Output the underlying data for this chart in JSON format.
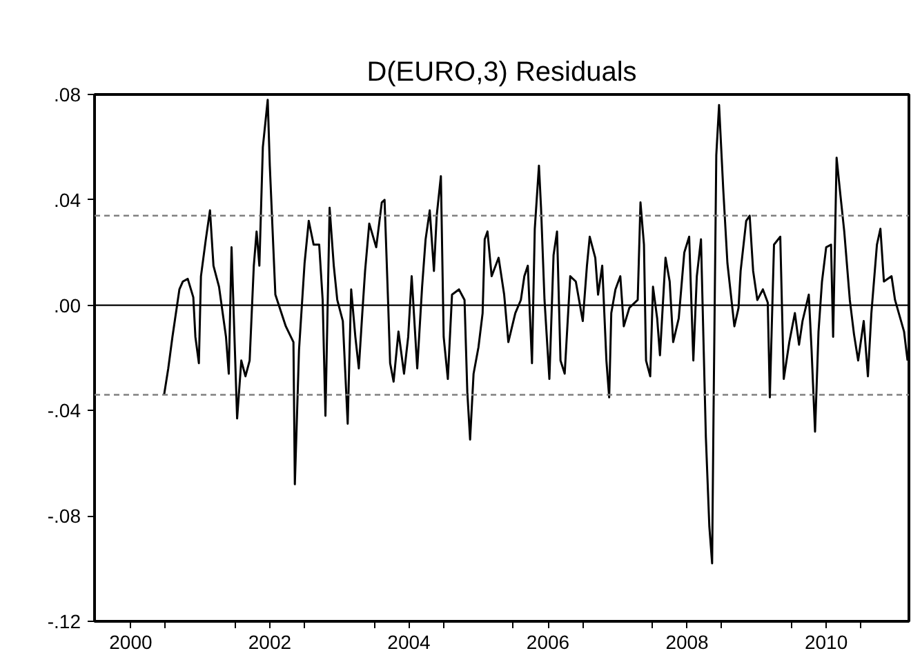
{
  "chart_data": {
    "type": "line",
    "title": "D(EURO,3) Residuals",
    "x": [
      2000.98,
      2001.04,
      2001.1,
      2001.2,
      2001.25,
      2001.32,
      2001.4,
      2001.43,
      2001.48,
      2001.51,
      2001.58,
      2001.64,
      2001.69,
      2001.77,
      2001.87,
      2001.91,
      2001.95,
      2002.03,
      2002.09,
      2002.15,
      2002.21,
      2002.27,
      2002.31,
      2002.35,
      2002.4,
      2002.47,
      2002.5,
      2002.58,
      2002.73,
      2002.84,
      2002.86,
      2002.92,
      2003.0,
      2003.06,
      2003.13,
      2003.21,
      2003.26,
      2003.3,
      2003.36,
      2003.42,
      2003.47,
      2003.55,
      2003.62,
      2003.67,
      2003.73,
      2003.78,
      2003.83,
      2003.87,
      2003.93,
      2004.03,
      2004.11,
      2004.15,
      2004.2,
      2004.23,
      2004.28,
      2004.35,
      2004.43,
      2004.49,
      2004.54,
      2004.62,
      2004.69,
      2004.74,
      2004.8,
      2004.86,
      2004.9,
      2004.96,
      2005.0,
      2005.06,
      2005.12,
      2005.22,
      2005.3,
      2005.34,
      2005.38,
      2005.43,
      2005.5,
      2005.56,
      2005.59,
      2005.63,
      2005.69,
      2005.79,
      2005.87,
      2005.93,
      2006.03,
      2006.11,
      2006.16,
      2006.21,
      2006.27,
      2006.31,
      2006.37,
      2006.4,
      2006.45,
      2006.52,
      2006.58,
      2006.63,
      2006.68,
      2006.74,
      2006.82,
      2006.9,
      2007.0,
      2007.06,
      2007.1,
      2007.18,
      2007.22,
      2007.28,
      2007.34,
      2007.38,
      2007.41,
      2007.47,
      2007.54,
      2007.59,
      2007.67,
      2007.79,
      2007.83,
      2007.88,
      2007.91,
      2007.97,
      2008.01,
      2008.07,
      2008.11,
      2008.19,
      2008.25,
      2008.3,
      2008.38,
      2008.46,
      2008.53,
      2008.59,
      2008.64,
      2008.7,
      2008.77,
      2008.82,
      2008.86,
      2008.88,
      2008.92,
      2008.96,
      2009.02,
      2009.08,
      2009.18,
      2009.24,
      2009.27,
      2009.35,
      2009.4,
      2009.45,
      2009.51,
      2009.59,
      2009.66,
      2009.69,
      2009.75,
      2009.84,
      2009.89,
      2009.97,
      2010.05,
      2010.11,
      2010.16,
      2010.25,
      2010.29,
      2010.34,
      2010.39,
      2010.44,
      2010.5,
      2010.57,
      2010.6,
      2010.65,
      2010.7,
      2010.76,
      2010.84,
      2010.9,
      2010.96,
      2011.04,
      2011.1,
      2011.15,
      2011.23,
      2011.28,
      2011.33,
      2011.44,
      2011.49,
      2011.62,
      2011.67
    ],
    "series": [
      {
        "color": "#000000",
        "values": [
          -0.034,
          -0.024,
          -0.012,
          0.006,
          0.009,
          0.01,
          0.003,
          -0.012,
          -0.022,
          0.011,
          0.025,
          0.036,
          0.015,
          0.007,
          -0.012,
          -0.026,
          0.022,
          -0.043,
          -0.021,
          -0.027,
          -0.021,
          0.015,
          0.028,
          0.015,
          0.06,
          0.078,
          0.053,
          0.004,
          -0.008,
          -0.014,
          -0.068,
          -0.017,
          0.016,
          0.032,
          0.023,
          0.023,
          0.002,
          -0.042,
          0.037,
          0.015,
          0.002,
          -0.006,
          -0.045,
          0.006,
          -0.012,
          -0.024,
          -0.003,
          0.013,
          0.031,
          0.022,
          0.039,
          0.04,
          0.002,
          -0.022,
          -0.029,
          -0.01,
          -0.026,
          -0.012,
          0.011,
          -0.024,
          0.007,
          0.025,
          0.036,
          0.013,
          0.034,
          0.049,
          -0.012,
          -0.028,
          0.004,
          0.006,
          0.002,
          -0.033,
          -0.051,
          -0.026,
          -0.016,
          -0.003,
          0.025,
          0.028,
          0.011,
          0.018,
          0.004,
          -0.014,
          -0.003,
          0.002,
          0.011,
          0.015,
          -0.022,
          0.029,
          0.053,
          0.037,
          0.002,
          -0.028,
          0.019,
          0.028,
          -0.021,
          -0.026,
          0.011,
          0.009,
          -0.006,
          0.015,
          0.026,
          0.018,
          0.004,
          0.015,
          -0.021,
          -0.035,
          -0.003,
          0.006,
          0.011,
          -0.008,
          -0.001,
          0.002,
          0.039,
          0.023,
          -0.021,
          -0.027,
          0.007,
          -0.005,
          -0.019,
          0.018,
          0.009,
          -0.014,
          -0.005,
          0.02,
          0.026,
          -0.021,
          0.011,
          0.025,
          -0.05,
          -0.084,
          -0.098,
          -0.042,
          0.057,
          0.076,
          0.044,
          0.016,
          -0.008,
          -0.001,
          0.013,
          0.032,
          0.034,
          0.013,
          0.002,
          0.006,
          0.001,
          -0.035,
          0.023,
          0.026,
          -0.028,
          -0.014,
          -0.003,
          -0.015,
          -0.006,
          0.004,
          -0.017,
          -0.048,
          -0.01,
          0.009,
          0.022,
          0.023,
          -0.012,
          0.056,
          0.043,
          0.028,
          0.002,
          -0.011,
          -0.021,
          -0.006,
          -0.027,
          -0.003,
          0.023,
          0.029,
          0.009,
          0.011,
          0.002,
          -0.01,
          -0.021
        ]
      }
    ],
    "xlim": [
      1999.98,
      2011.69
    ],
    "xticks": [
      {
        "value": 2000.5,
        "label": "2000"
      },
      {
        "value": 2001,
        "label": null
      },
      {
        "value": 2002,
        "label": null
      },
      {
        "value": 2002.5,
        "label": "2002"
      },
      {
        "value": 2003,
        "label": null
      },
      {
        "value": 2004,
        "label": null
      },
      {
        "value": 2004.5,
        "label": "2004"
      },
      {
        "value": 2005,
        "label": null
      },
      {
        "value": 2006,
        "label": null
      },
      {
        "value": 2006.5,
        "label": "2006"
      },
      {
        "value": 2007,
        "label": null
      },
      {
        "value": 2008,
        "label": null
      },
      {
        "value": 2008.5,
        "label": "2008"
      },
      {
        "value": 2009,
        "label": null
      },
      {
        "value": 2010,
        "label": null
      },
      {
        "value": 2010.5,
        "label": "2010"
      },
      {
        "value": 2011,
        "label": null
      }
    ],
    "ylim": [
      -0.12,
      0.08
    ],
    "yticks": [
      {
        "value": 0.08,
        "label": ".08"
      },
      {
        "value": 0.04,
        "label": ".04"
      },
      {
        "value": 0,
        "label": ".00"
      },
      {
        "value": -0.04,
        "label": "-.04"
      },
      {
        "value": -0.08,
        "label": "-.08"
      },
      {
        "value": -0.12,
        "label": "-.12"
      }
    ],
    "ref_lines": [
      {
        "axis": "y",
        "value": 0.034,
        "color": "#808080",
        "line_style": "dashed"
      },
      {
        "axis": "y",
        "value": -0.034,
        "color": "#808080",
        "line_style": "dashed"
      },
      {
        "axis": "y",
        "value": 0,
        "color": "#000000",
        "line_style": "solid"
      }
    ],
    "grid": false,
    "marker": "none",
    "line_style": "solid"
  }
}
